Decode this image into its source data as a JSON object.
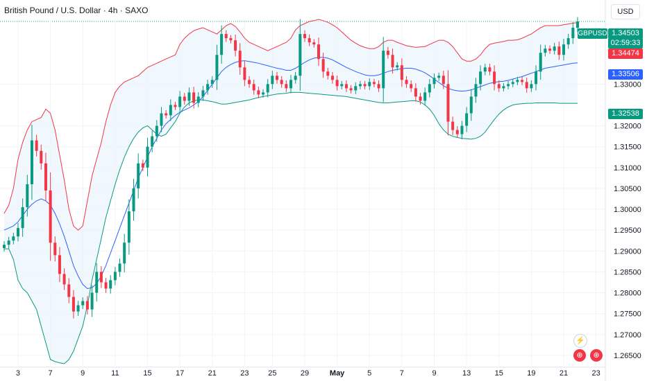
{
  "header": {
    "title": "British Pound / U.S. Dollar · 4h · SAXO"
  },
  "currency_button": "USD",
  "symbol_tag": "GBPUSD",
  "price_tags": {
    "last": "1.34503",
    "countdown": "02:59:33",
    "upper_band": "1.34474",
    "basis": "1.33506",
    "lower_band": "1.32538"
  },
  "colors": {
    "up": "#089981",
    "down": "#f23645",
    "basis": "#2962ff",
    "upper": "#f23645",
    "lower": "#089981",
    "fill": "#eaf3fc"
  },
  "chart_data": {
    "type": "candlestick",
    "title": "British Pound / U.S. Dollar · 4h · SAXO",
    "xlabel": "",
    "ylabel": "",
    "ylim": [
      1.2625,
      1.3455
    ],
    "x_ticks": [
      {
        "label": "3",
        "index": 3
      },
      {
        "label": "7",
        "index": 10
      },
      {
        "label": "9",
        "index": 17
      },
      {
        "label": "11",
        "index": 24
      },
      {
        "label": "15",
        "index": 31
      },
      {
        "label": "17",
        "index": 38
      },
      {
        "label": "21",
        "index": 45
      },
      {
        "label": "23",
        "index": 52
      },
      {
        "label": "25",
        "index": 58
      },
      {
        "label": "29",
        "index": 65
      },
      {
        "label": "May",
        "index": 72
      },
      {
        "label": "5",
        "index": 79
      },
      {
        "label": "7",
        "index": 86
      },
      {
        "label": "9",
        "index": 93
      },
      {
        "label": "13",
        "index": 100
      },
      {
        "label": "15",
        "index": 107
      },
      {
        "label": "19",
        "index": 114
      },
      {
        "label": "21",
        "index": 121
      },
      {
        "label": "23",
        "index": 128
      }
    ],
    "y_ticks": [
      "1.33000",
      "1.32000",
      "1.31500",
      "1.31000",
      "1.30500",
      "1.30000",
      "1.29500",
      "1.29000",
      "1.28500",
      "1.28000",
      "1.27500",
      "1.27000",
      "1.26500"
    ],
    "indicator": "Bollinger Bands",
    "series": [
      {
        "name": "Close",
        "values": [
          1.2915,
          1.2925,
          1.2935,
          1.2955,
          1.3005,
          1.306,
          1.3165,
          1.314,
          1.311,
          1.3045,
          1.292,
          1.289,
          1.2845,
          1.282,
          1.279,
          1.2755,
          1.277,
          1.278,
          1.276,
          1.28,
          1.285,
          1.2825,
          1.281,
          1.283,
          1.285,
          1.287,
          1.292,
          1.2995,
          1.305,
          1.311,
          1.31,
          1.315,
          1.3175,
          1.32,
          1.323,
          1.3225,
          1.325,
          1.3245,
          1.327,
          1.326,
          1.328,
          1.3255,
          1.327,
          1.3285,
          1.33,
          1.331,
          1.337,
          1.342,
          1.341,
          1.3405,
          1.338,
          1.334,
          1.331,
          1.33,
          1.3285,
          1.3275,
          1.328,
          1.33,
          1.332,
          1.331,
          1.33,
          1.329,
          1.331,
          1.332,
          1.342,
          1.341,
          1.34,
          1.3395,
          1.336,
          1.333,
          1.332,
          1.331,
          1.3295,
          1.33,
          1.329,
          1.3285,
          1.3295,
          1.33,
          1.3295,
          1.3305,
          1.33,
          1.329,
          1.338,
          1.337,
          1.334,
          1.3345,
          1.331,
          1.33,
          1.329,
          1.327,
          1.326,
          1.328,
          1.33,
          1.3315,
          1.332,
          1.33,
          1.321,
          1.319,
          1.318,
          1.32,
          1.323,
          1.327,
          1.33,
          1.333,
          1.334,
          1.333,
          1.33,
          1.329,
          1.3295,
          1.33,
          1.3305,
          1.331,
          1.3305,
          1.329,
          1.33,
          1.333,
          1.3375,
          1.3385,
          1.338,
          1.339,
          1.337,
          1.3395,
          1.341,
          1.3435,
          1.345
        ]
      },
      {
        "name": "Upper band",
        "values": [
          1.299,
          1.301,
          1.305,
          1.312,
          1.316,
          1.319,
          1.321,
          1.3215,
          1.322,
          1.324,
          1.323,
          1.319,
          1.313,
          1.307,
          1.3,
          1.296,
          1.295,
          1.296,
          1.302,
          1.308,
          1.312,
          1.316,
          1.321,
          1.325,
          1.328,
          1.3295,
          1.3305,
          1.331,
          1.3315,
          1.332,
          1.333,
          1.334,
          1.3345,
          1.335,
          1.3355,
          1.336,
          1.3365,
          1.337,
          1.3395,
          1.341,
          1.342,
          1.3428,
          1.3432,
          1.3435,
          1.343,
          1.3425,
          1.342,
          1.343,
          1.344,
          1.3445,
          1.3438,
          1.3425,
          1.341,
          1.34,
          1.3395,
          1.339,
          1.3385,
          1.338,
          1.3385,
          1.339,
          1.3395,
          1.34,
          1.341,
          1.343,
          1.344,
          1.3445,
          1.345,
          1.3452,
          1.3455,
          1.3452,
          1.3448,
          1.3442,
          1.3435,
          1.3425,
          1.3415,
          1.3405,
          1.3398,
          1.3392,
          1.3388,
          1.3385,
          1.3385,
          1.339,
          1.34,
          1.3405,
          1.3405,
          1.34,
          1.3396,
          1.3392,
          1.339,
          1.3388,
          1.3389,
          1.339,
          1.3395,
          1.34,
          1.3405,
          1.3405,
          1.34,
          1.339,
          1.3375,
          1.336,
          1.3355,
          1.3355,
          1.336,
          1.337,
          1.3385,
          1.3395,
          1.3398,
          1.34,
          1.3402,
          1.3405,
          1.3405,
          1.3406,
          1.341,
          1.3415,
          1.342,
          1.3428,
          1.3435,
          1.344,
          1.344,
          1.344,
          1.344,
          1.3442,
          1.3444,
          1.3446,
          1.3447
        ]
      },
      {
        "name": "Basis",
        "values": [
          1.295,
          1.2955,
          1.296,
          1.297,
          1.2985,
          1.3,
          1.3012,
          1.302,
          1.3025,
          1.302,
          1.301,
          1.299,
          1.2965,
          1.2935,
          1.29,
          1.2865,
          1.284,
          1.282,
          1.281,
          1.2812,
          1.2822,
          1.284,
          1.2865,
          1.2895,
          1.2925,
          1.2955,
          1.2985,
          1.3015,
          1.3045,
          1.3075,
          1.31,
          1.3125,
          1.315,
          1.317,
          1.319,
          1.3205,
          1.3215,
          1.3225,
          1.3232,
          1.3238,
          1.3243,
          1.325,
          1.3258,
          1.327,
          1.3285,
          1.33,
          1.3315,
          1.333,
          1.334,
          1.3347,
          1.3352,
          1.3355,
          1.3356,
          1.3354,
          1.3352,
          1.335,
          1.3347,
          1.3344,
          1.3341,
          1.3338,
          1.3336,
          1.3333,
          1.3333,
          1.3338,
          1.3345,
          1.3352,
          1.3358,
          1.3362,
          1.3364,
          1.3364,
          1.3362,
          1.3358,
          1.3352,
          1.3346,
          1.334,
          1.3335,
          1.333,
          1.3326,
          1.3322,
          1.332,
          1.332,
          1.3322,
          1.3326,
          1.333,
          1.3333,
          1.3335,
          1.3337,
          1.3338,
          1.3338,
          1.3336,
          1.3332,
          1.3327,
          1.332,
          1.3312,
          1.3304,
          1.3296,
          1.329,
          1.3286,
          1.3284,
          1.3283,
          1.3284,
          1.3286,
          1.329,
          1.3294,
          1.3298,
          1.3302,
          1.3304,
          1.3306,
          1.3307,
          1.3309,
          1.3312,
          1.3315,
          1.3318,
          1.3322,
          1.3326,
          1.333,
          1.3334,
          1.3338,
          1.334,
          1.3342,
          1.3344,
          1.3346,
          1.3348,
          1.335,
          1.3351
        ]
      },
      {
        "name": "Lower band",
        "values": [
          1.2905,
          1.2905,
          1.288,
          1.283,
          1.281,
          1.28,
          1.278,
          1.276,
          1.272,
          1.268,
          1.264,
          1.2635,
          1.2632,
          1.263,
          1.264,
          1.266,
          1.269,
          1.272,
          1.277,
          1.283,
          1.288,
          1.293,
          1.298,
          1.302,
          1.306,
          1.3095,
          1.3125,
          1.315,
          1.317,
          1.3185,
          1.3195,
          1.32,
          1.319,
          1.318,
          1.3175,
          1.318,
          1.3195,
          1.321,
          1.323,
          1.3245,
          1.3255,
          1.326,
          1.3262,
          1.3262,
          1.326,
          1.3258,
          1.3255,
          1.3252,
          1.3252,
          1.3254,
          1.3256,
          1.3258,
          1.326,
          1.3262,
          1.3265,
          1.3268,
          1.327,
          1.3272,
          1.3274,
          1.3276,
          1.3277,
          1.3278,
          1.328,
          1.328,
          1.328,
          1.3279,
          1.3278,
          1.3277,
          1.3276,
          1.3275,
          1.3274,
          1.3273,
          1.3272,
          1.3271,
          1.327,
          1.3268,
          1.3266,
          1.3264,
          1.3262,
          1.326,
          1.3258,
          1.3256,
          1.3255,
          1.3255,
          1.3256,
          1.3257,
          1.3258,
          1.3259,
          1.326,
          1.326,
          1.3257,
          1.325,
          1.324,
          1.3225,
          1.3205,
          1.319,
          1.318,
          1.3175,
          1.3172,
          1.317,
          1.3169,
          1.3168,
          1.317,
          1.3175,
          1.3185,
          1.32,
          1.3215,
          1.3228,
          1.3238,
          1.3245,
          1.325,
          1.3252,
          1.3253,
          1.3254,
          1.3254,
          1.3255,
          1.3255,
          1.3255,
          1.3255,
          1.3255,
          1.3254,
          1.3254,
          1.3254,
          1.3254,
          1.3254
        ]
      }
    ]
  }
}
